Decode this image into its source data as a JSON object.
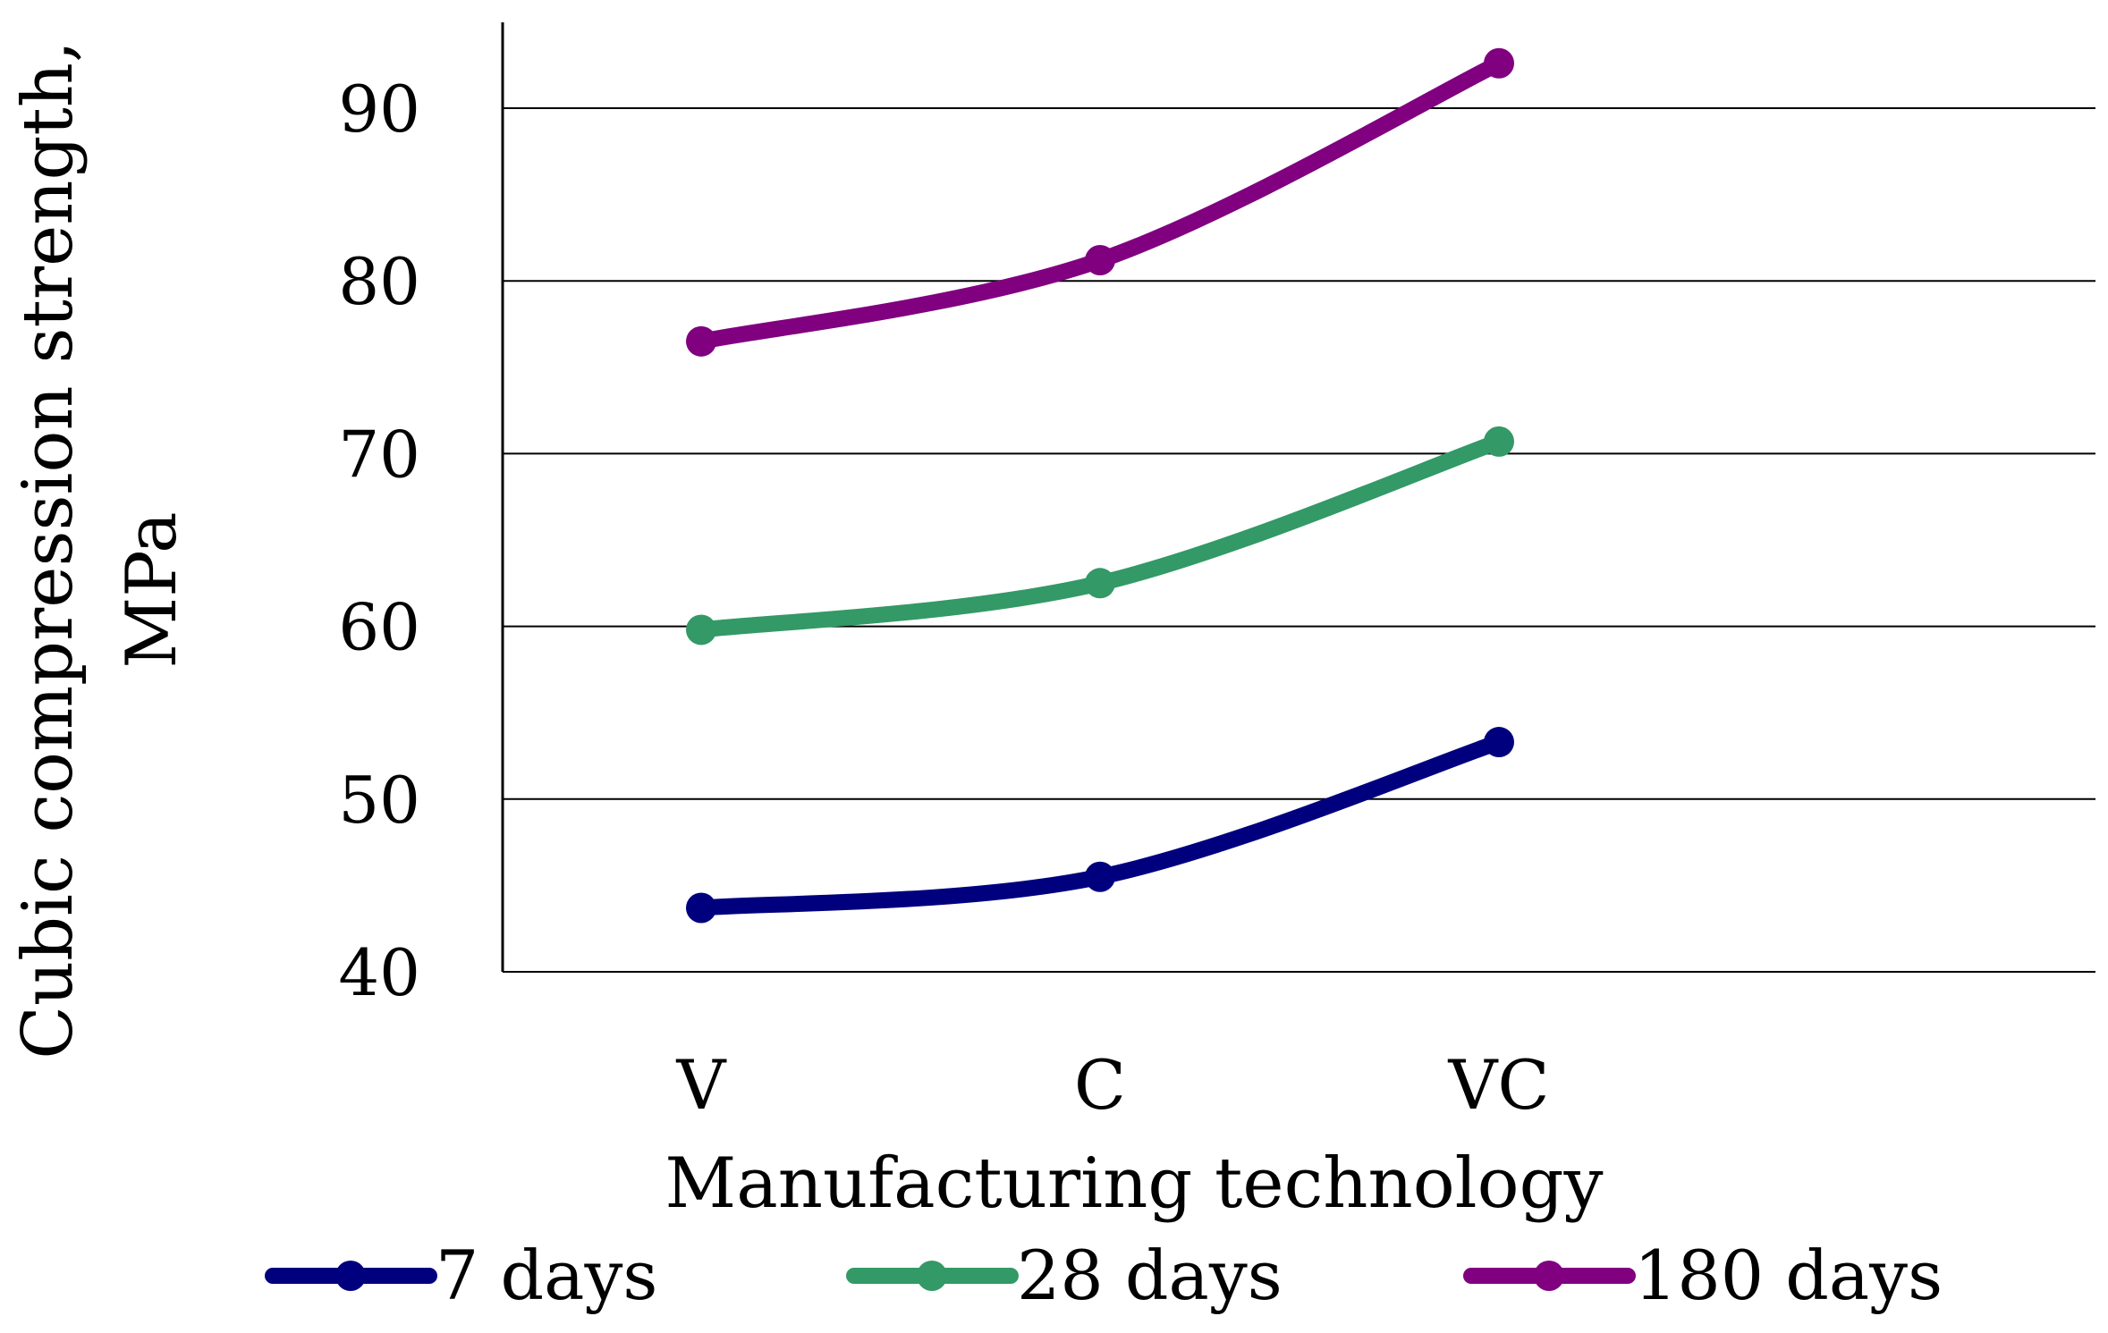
{
  "chart_data": {
    "type": "line",
    "title": "",
    "xlabel": "Manufacturing technology",
    "ylabel_lines": [
      "Cubic compression strength,",
      "MPa"
    ],
    "categories": [
      "V",
      "C",
      "VC"
    ],
    "ylim": [
      40,
      95
    ],
    "yticks": [
      40,
      50,
      60,
      70,
      80,
      90
    ],
    "grid": true,
    "smooth": true,
    "legend_position": "bottom",
    "series": [
      {
        "name": "7 days",
        "color": "#00007f",
        "values": [
          43.7,
          45.5,
          53.3
        ]
      },
      {
        "name": "28 days",
        "color": "#339966",
        "values": [
          59.8,
          62.5,
          70.7
        ]
      },
      {
        "name": "180 days",
        "color": "#800080",
        "values": [
          76.5,
          81.2,
          92.6
        ]
      }
    ]
  }
}
